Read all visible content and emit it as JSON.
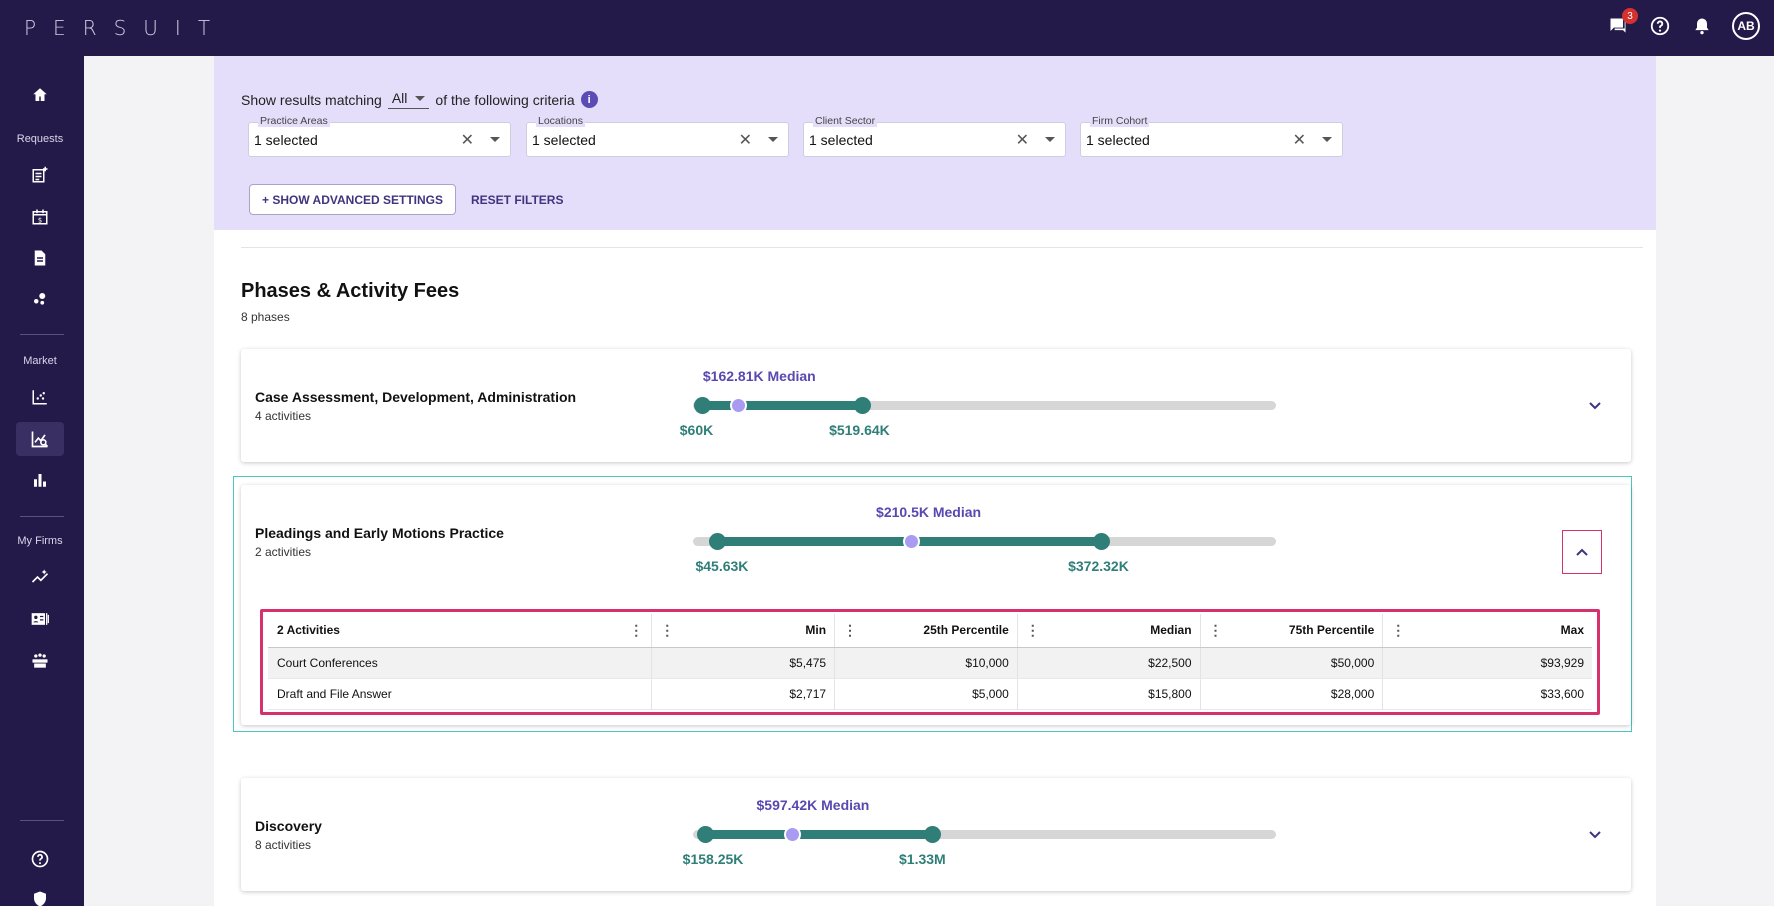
{
  "app": {
    "logo": "PERSUIT",
    "messages_badge": "3",
    "avatar_initials": "AB"
  },
  "sidebar": {
    "requests_label": "Requests",
    "market_label": "Market",
    "myfirms_label": "My Firms"
  },
  "filters": {
    "criteria_prefix": "Show results matching",
    "match_value": "All",
    "criteria_suffix": "of the following criteria",
    "fields": [
      {
        "label": "Practice Areas",
        "value": "1 selected"
      },
      {
        "label": "Locations",
        "value": "1 selected"
      },
      {
        "label": "Client Sector",
        "value": "1 selected"
      },
      {
        "label": "Firm Cohort",
        "value": "1 selected"
      }
    ],
    "advanced_button": "+ SHOW ADVANCED SETTINGS",
    "reset_button": "RESET FILTERS"
  },
  "section": {
    "title": "Phases & Activity Fees",
    "subtitle": "8 phases"
  },
  "phases": [
    {
      "name": "Case Assessment, Development, Administration",
      "activities": "4 activities",
      "median_label": "$162.81K Median",
      "min_label": "$60K",
      "max_label": "$519.64K",
      "range_fractions": {
        "low": 0.015,
        "median": 0.077,
        "high": 0.29
      },
      "expanded": false
    },
    {
      "name": "Pleadings and Early Motions Practice",
      "activities": "2 activities",
      "median_label": "$210.5K Median",
      "min_label": "$45.63K",
      "max_label": "$372.32K",
      "range_fractions": {
        "low": 0.042,
        "median": 0.374,
        "high": 0.7
      },
      "expanded": true,
      "table": {
        "headers": [
          "2 Activities",
          "Min",
          "25th Percentile",
          "Median",
          "75th Percentile",
          "Max"
        ],
        "rows": [
          [
            "Court Conferences",
            "$5,475",
            "$10,000",
            "$22,500",
            "$50,000",
            "$93,929"
          ],
          [
            "Draft and File Answer",
            "$2,717",
            "$5,000",
            "$15,800",
            "$28,000",
            "$33,600"
          ]
        ]
      }
    },
    {
      "name": "Discovery",
      "activities": "8 activities",
      "median_label": "$597.42K Median",
      "min_label": "$158.25K",
      "max_label": "$1.33M",
      "range_fractions": {
        "low": 0.02,
        "median": 0.169,
        "high": 0.41
      },
      "expanded": false
    }
  ],
  "colors": {
    "brand": "#241a4a",
    "range": "#2f7e78",
    "median": "#a99af2",
    "highlight": "#d6306d",
    "focus": "#4cc7be"
  }
}
